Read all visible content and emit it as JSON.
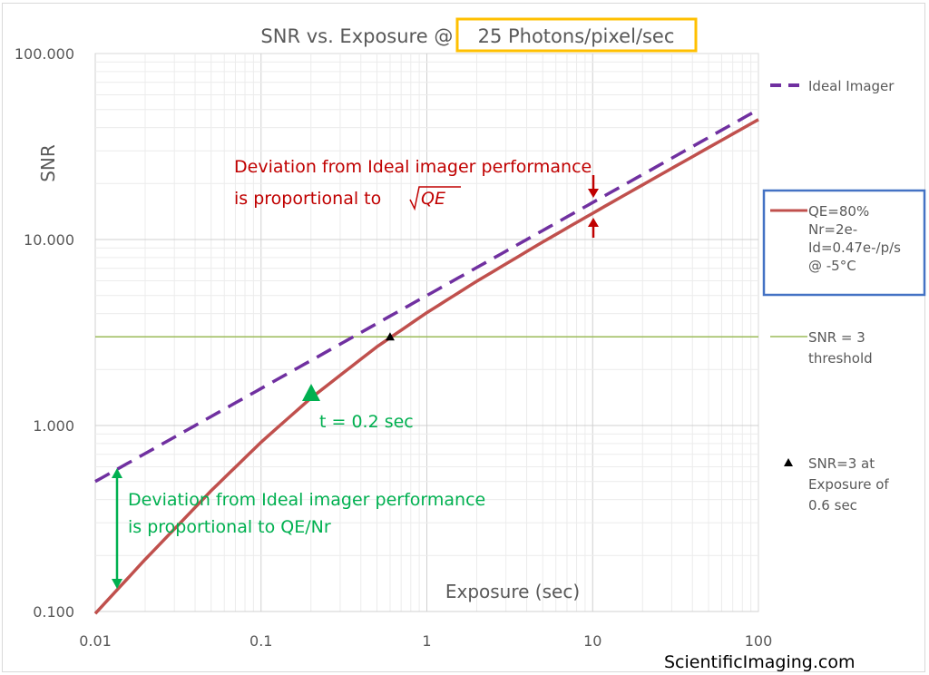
{
  "chart_data": {
    "type": "line",
    "title_prefix": "SNR vs. Exposure @ ",
    "title_highlight": "25 Photons/pixel/sec",
    "xlabel": "Exposure (sec)",
    "ylabel": "SNR",
    "x_scale": "log",
    "y_scale": "log",
    "xlim": [
      0.01,
      100
    ],
    "ylim": [
      0.1,
      100
    ],
    "grid": true,
    "legend_position": "right",
    "x_ticks": [
      "0.01",
      "0.1",
      "1",
      "10",
      "100"
    ],
    "y_ticks": [
      "0.100",
      "1.000",
      "10.000",
      "100.000"
    ],
    "x": [
      0.01,
      0.02,
      0.05,
      0.1,
      0.2,
      0.5,
      1,
      2,
      5,
      10,
      20,
      50,
      100
    ],
    "series": [
      {
        "name": "Ideal Imager",
        "color": "#7030a0",
        "style": "dashed",
        "values": [
          0.5,
          0.707,
          1.118,
          1.581,
          2.236,
          3.536,
          5,
          7.071,
          11.18,
          15.81,
          22.36,
          35.36,
          50
        ]
      },
      {
        "name": "QE=80%\nNr=2e-\nId=0.47e-/p/s\n@ -5°C",
        "color": "#c0504d",
        "style": "solid",
        "values": [
          0.0975,
          0.1905,
          0.446,
          0.813,
          1.406,
          2.65,
          4.043,
          5.967,
          9.697,
          13.84,
          19.67,
          31.2,
          44.16
        ]
      },
      {
        "name": "SNR = 3\nthreshold",
        "color": "#9bbb59",
        "style": "solid",
        "values": [
          3,
          3,
          3,
          3,
          3,
          3,
          3,
          3,
          3,
          3,
          3,
          3,
          3
        ]
      }
    ],
    "markers": [
      {
        "name": "SNR=3 at\nExposure of\n0.6 sec",
        "x": 0.6,
        "y": 3,
        "symbol": "triangle",
        "color": "#000000"
      }
    ],
    "legend": [
      {
        "line1": "Ideal Imager"
      },
      {
        "line1": "QE=80%",
        "line2": "Nr=2e-",
        "line3": "Id=0.47e-/p/s",
        "line4": "@ -5°C"
      },
      {
        "line1": "SNR = 3",
        "line2": "threshold"
      },
      {
        "line1": "SNR=3 at",
        "line2": "Exposure of",
        "line3": "0.6 sec"
      }
    ],
    "annotations": {
      "red_line1": "Deviation from Ideal imager performance",
      "red_line2": "is proportional to ",
      "red_math": "QE",
      "green_line1": "Deviation from Ideal imager performance",
      "green_line2": "is proportional to QE/Nr",
      "green_marker_label": "t = 0.2 sec",
      "red_color": "#c00000",
      "green_color": "#00b050"
    },
    "highlight_colors": {
      "title_box": "#ffc000",
      "legend_box": "#4472c4"
    }
  },
  "watermark": "ScientificImaging.com"
}
